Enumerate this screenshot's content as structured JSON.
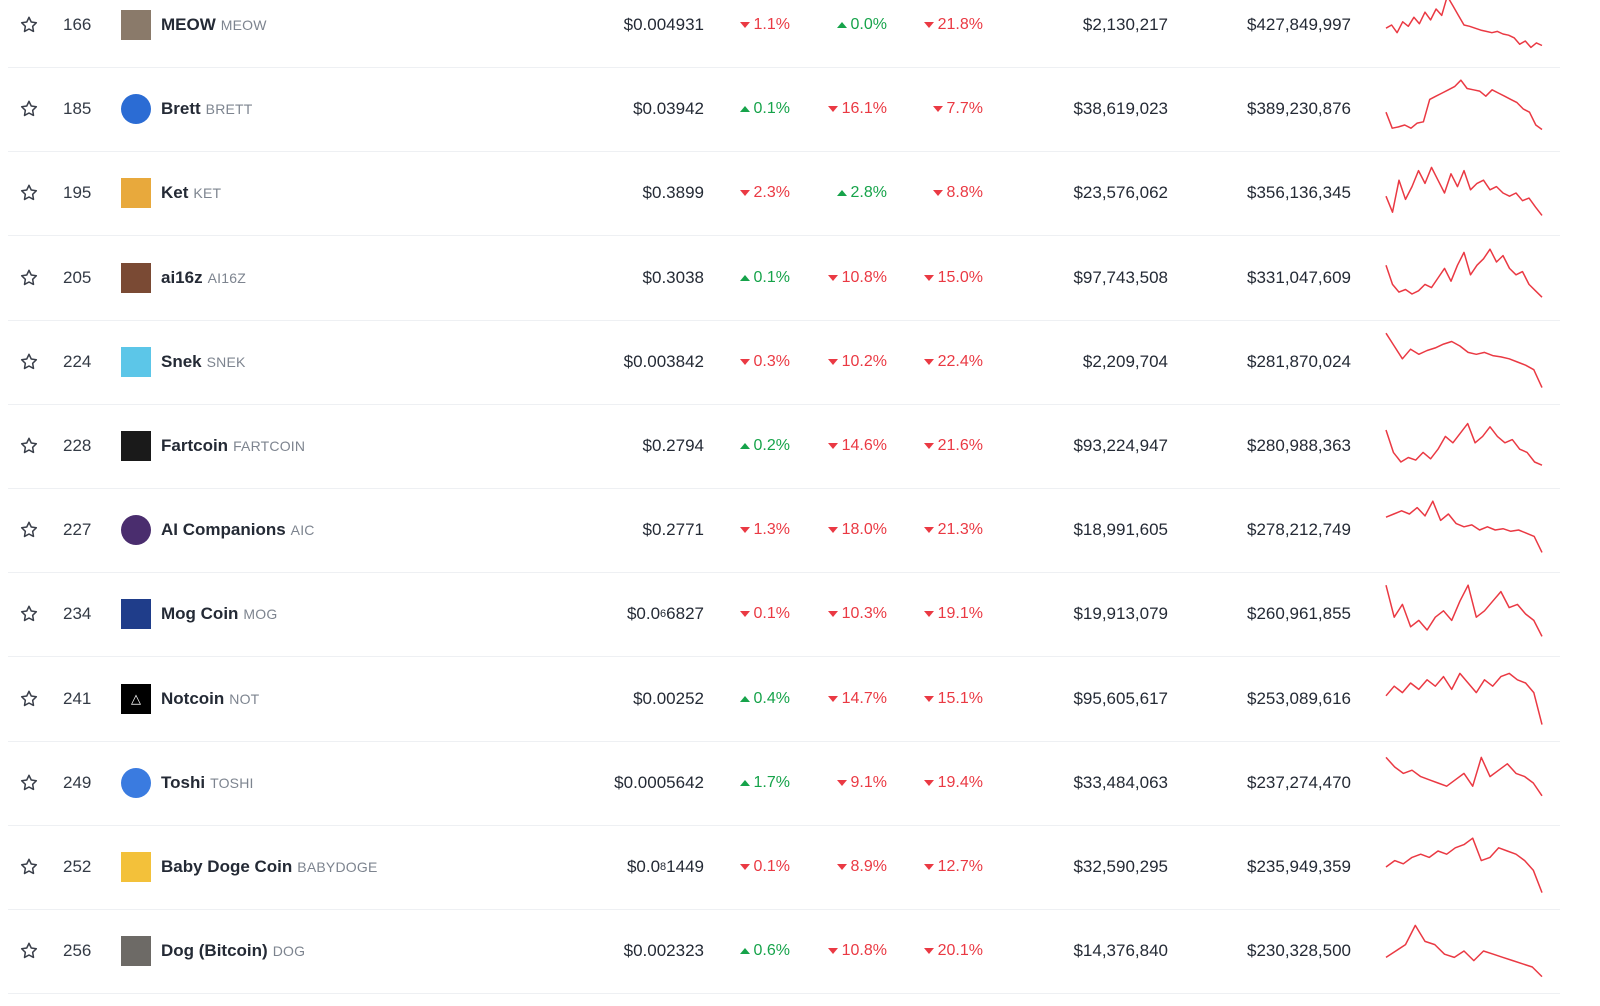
{
  "accent": {
    "up": "#16a34a",
    "down": "#ea3943",
    "spark": "#ea3943"
  },
  "rows": [
    {
      "rank": "166",
      "name": "MEOW",
      "symbol": "MEOW",
      "logo": {
        "icon": "meow-cat-icon",
        "bg": "#8a7a6a",
        "glyph": "",
        "round": false
      },
      "price": "$0.004931",
      "price_sub": "",
      "price_tail": "",
      "pct_1h": {
        "dir": "down",
        "value": "1.1%"
      },
      "pct_24h": {
        "dir": "up",
        "value": "0.0%"
      },
      "pct_7d": {
        "dir": "down",
        "value": "21.8%"
      },
      "volume": "$2,130,217",
      "market_cap": "$427,849,997",
      "spark": [
        0.55,
        0.5,
        0.62,
        0.45,
        0.52,
        0.38,
        0.48,
        0.3,
        0.42,
        0.25,
        0.35,
        0.05,
        0.2,
        0.35,
        0.5,
        0.52,
        0.55,
        0.58,
        0.6,
        0.62,
        0.6,
        0.64,
        0.66,
        0.7,
        0.8,
        0.75,
        0.85,
        0.78,
        0.82
      ]
    },
    {
      "rank": "185",
      "name": "Brett",
      "symbol": "BRETT",
      "logo": {
        "icon": "brett-blue-face-icon",
        "bg": "#2b6cd4",
        "glyph": "",
        "round": true
      },
      "price": "$0.03942",
      "price_sub": "",
      "price_tail": "",
      "pct_1h": {
        "dir": "up",
        "value": "0.1%"
      },
      "pct_24h": {
        "dir": "down",
        "value": "16.1%"
      },
      "pct_7d": {
        "dir": "down",
        "value": "7.7%"
      },
      "volume": "$38,619,023",
      "market_cap": "$389,230,876",
      "spark": [
        0.55,
        0.8,
        0.78,
        0.75,
        0.8,
        0.72,
        0.7,
        0.35,
        0.3,
        0.25,
        0.2,
        0.15,
        0.05,
        0.18,
        0.2,
        0.22,
        0.3,
        0.2,
        0.25,
        0.3,
        0.35,
        0.4,
        0.5,
        0.55,
        0.75,
        0.82
      ]
    },
    {
      "rank": "195",
      "name": "Ket",
      "symbol": "KET",
      "logo": {
        "icon": "ket-cat-icon",
        "bg": "#e8a93c",
        "glyph": "",
        "round": false
      },
      "price": "$0.3899",
      "price_sub": "",
      "price_tail": "",
      "pct_1h": {
        "dir": "down",
        "value": "2.3%"
      },
      "pct_24h": {
        "dir": "up",
        "value": "2.8%"
      },
      "pct_7d": {
        "dir": "down",
        "value": "8.8%"
      },
      "volume": "$23,576,062",
      "market_cap": "$356,136,345",
      "spark": [
        0.55,
        0.8,
        0.3,
        0.6,
        0.4,
        0.15,
        0.35,
        0.1,
        0.3,
        0.5,
        0.2,
        0.4,
        0.15,
        0.45,
        0.35,
        0.3,
        0.45,
        0.4,
        0.5,
        0.55,
        0.5,
        0.62,
        0.58,
        0.72,
        0.85
      ]
    },
    {
      "rank": "205",
      "name": "ai16z",
      "symbol": "AI16Z",
      "logo": {
        "icon": "ai16z-portrait-icon",
        "bg": "#7a4a34",
        "glyph": "",
        "round": false
      },
      "price": "$0.3038",
      "price_sub": "",
      "price_tail": "",
      "pct_1h": {
        "dir": "up",
        "value": "0.1%"
      },
      "pct_24h": {
        "dir": "down",
        "value": "10.8%"
      },
      "pct_7d": {
        "dir": "down",
        "value": "15.0%"
      },
      "volume": "$97,743,508",
      "market_cap": "$331,047,609",
      "spark": [
        0.3,
        0.6,
        0.72,
        0.68,
        0.75,
        0.7,
        0.6,
        0.65,
        0.5,
        0.35,
        0.55,
        0.3,
        0.1,
        0.45,
        0.3,
        0.2,
        0.05,
        0.25,
        0.15,
        0.35,
        0.45,
        0.4,
        0.6,
        0.7,
        0.8
      ]
    },
    {
      "rank": "224",
      "name": "Snek",
      "symbol": "SNEK",
      "logo": {
        "icon": "snek-snake-icon",
        "bg": "#5cc6e8",
        "glyph": "",
        "round": false
      },
      "price": "$0.003842",
      "price_sub": "",
      "price_tail": "",
      "pct_1h": {
        "dir": "down",
        "value": "0.3%"
      },
      "pct_24h": {
        "dir": "down",
        "value": "10.2%"
      },
      "pct_7d": {
        "dir": "down",
        "value": "22.4%"
      },
      "volume": "$2,209,704",
      "market_cap": "$281,870,024",
      "spark": [
        0.05,
        0.25,
        0.45,
        0.3,
        0.38,
        0.32,
        0.28,
        0.22,
        0.18,
        0.25,
        0.35,
        0.38,
        0.35,
        0.4,
        0.42,
        0.45,
        0.5,
        0.55,
        0.62,
        0.9
      ]
    },
    {
      "rank": "228",
      "name": "Fartcoin",
      "symbol": "FARTCOIN",
      "logo": {
        "icon": "fartcoin-dark-icon",
        "bg": "#1a1a1a",
        "glyph": "",
        "round": false
      },
      "price": "$0.2794",
      "price_sub": "",
      "price_tail": "",
      "pct_1h": {
        "dir": "up",
        "value": "0.2%"
      },
      "pct_24h": {
        "dir": "down",
        "value": "14.6%"
      },
      "pct_7d": {
        "dir": "down",
        "value": "21.6%"
      },
      "volume": "$93,224,947",
      "market_cap": "$280,988,363",
      "spark": [
        0.25,
        0.6,
        0.75,
        0.68,
        0.72,
        0.6,
        0.7,
        0.55,
        0.35,
        0.45,
        0.3,
        0.15,
        0.45,
        0.35,
        0.2,
        0.35,
        0.45,
        0.4,
        0.55,
        0.6,
        0.75,
        0.8
      ]
    },
    {
      "rank": "227",
      "name": "AI Companions",
      "symbol": "AIC",
      "logo": {
        "icon": "ai-companions-avatar-icon",
        "bg": "#4a2d6e",
        "glyph": "",
        "round": true
      },
      "price": "$0.2771",
      "price_sub": "",
      "price_tail": "",
      "pct_1h": {
        "dir": "down",
        "value": "1.3%"
      },
      "pct_24h": {
        "dir": "down",
        "value": "18.0%"
      },
      "pct_7d": {
        "dir": "down",
        "value": "21.3%"
      },
      "volume": "$18,991,605",
      "market_cap": "$278,212,749",
      "spark": [
        0.3,
        0.25,
        0.2,
        0.25,
        0.15,
        0.28,
        0.05,
        0.35,
        0.25,
        0.4,
        0.45,
        0.42,
        0.5,
        0.45,
        0.5,
        0.48,
        0.52,
        0.5,
        0.55,
        0.6,
        0.85
      ]
    },
    {
      "rank": "234",
      "name": "Mog Coin",
      "symbol": "MOG",
      "logo": {
        "icon": "mog-cat-icon",
        "bg": "#1f3d8a",
        "glyph": "",
        "round": false
      },
      "price": "$0.0",
      "price_sub": "6",
      "price_tail": "6827",
      "pct_1h": {
        "dir": "down",
        "value": "0.1%"
      },
      "pct_24h": {
        "dir": "down",
        "value": "10.3%"
      },
      "pct_7d": {
        "dir": "down",
        "value": "19.1%"
      },
      "volume": "$19,913,079",
      "market_cap": "$260,961,855",
      "spark": [
        0.05,
        0.55,
        0.35,
        0.7,
        0.6,
        0.75,
        0.55,
        0.45,
        0.6,
        0.3,
        0.05,
        0.55,
        0.45,
        0.3,
        0.15,
        0.4,
        0.35,
        0.5,
        0.6,
        0.85
      ]
    },
    {
      "rank": "241",
      "name": "Notcoin",
      "symbol": "NOT",
      "logo": {
        "icon": "notcoin-triangle-icon",
        "bg": "#000000",
        "glyph": "△",
        "round": false
      },
      "price": "$0.00252",
      "price_sub": "",
      "price_tail": "",
      "pct_1h": {
        "dir": "up",
        "value": "0.4%"
      },
      "pct_24h": {
        "dir": "down",
        "value": "14.7%"
      },
      "pct_7d": {
        "dir": "down",
        "value": "15.1%"
      },
      "volume": "$95,605,617",
      "market_cap": "$253,089,616",
      "spark": [
        0.45,
        0.3,
        0.4,
        0.25,
        0.35,
        0.2,
        0.3,
        0.15,
        0.35,
        0.1,
        0.25,
        0.4,
        0.2,
        0.3,
        0.15,
        0.1,
        0.2,
        0.25,
        0.4,
        0.9
      ]
    },
    {
      "rank": "249",
      "name": "Toshi",
      "symbol": "TOSHI",
      "logo": {
        "icon": "toshi-cat-icon",
        "bg": "#3a7be0",
        "glyph": "",
        "round": true
      },
      "price": "$0.0005642",
      "price_sub": "",
      "price_tail": "",
      "pct_1h": {
        "dir": "up",
        "value": "1.7%"
      },
      "pct_24h": {
        "dir": "down",
        "value": "9.1%"
      },
      "pct_7d": {
        "dir": "down",
        "value": "19.4%"
      },
      "volume": "$33,484,063",
      "market_cap": "$237,274,470",
      "spark": [
        0.1,
        0.25,
        0.35,
        0.3,
        0.4,
        0.45,
        0.5,
        0.55,
        0.45,
        0.35,
        0.55,
        0.1,
        0.4,
        0.3,
        0.2,
        0.35,
        0.4,
        0.5,
        0.7
      ]
    },
    {
      "rank": "252",
      "name": "Baby Doge Coin",
      "symbol": "BABYDOGE",
      "logo": {
        "icon": "baby-doge-icon",
        "bg": "#f3c13a",
        "glyph": "",
        "round": false
      },
      "price": "$0.0",
      "price_sub": "8",
      "price_tail": "1449",
      "pct_1h": {
        "dir": "down",
        "value": "0.1%"
      },
      "pct_24h": {
        "dir": "down",
        "value": "8.9%"
      },
      "pct_7d": {
        "dir": "down",
        "value": "12.7%"
      },
      "volume": "$32,590,295",
      "market_cap": "$235,949,359",
      "spark": [
        0.5,
        0.4,
        0.45,
        0.35,
        0.3,
        0.35,
        0.25,
        0.3,
        0.2,
        0.15,
        0.05,
        0.4,
        0.35,
        0.2,
        0.25,
        0.3,
        0.4,
        0.55,
        0.9
      ]
    },
    {
      "rank": "256",
      "name": "Dog (Bitcoin)",
      "symbol": "DOG",
      "logo": {
        "icon": "dog-bitcoin-icon",
        "bg": "#6d6a66",
        "glyph": "",
        "round": false
      },
      "price": "$0.002323",
      "price_sub": "",
      "price_tail": "",
      "pct_1h": {
        "dir": "up",
        "value": "0.6%"
      },
      "pct_24h": {
        "dir": "down",
        "value": "10.8%"
      },
      "pct_7d": {
        "dir": "down",
        "value": "20.1%"
      },
      "volume": "$14,376,840",
      "market_cap": "$230,328,500",
      "spark": [
        0.6,
        0.5,
        0.4,
        0.1,
        0.35,
        0.4,
        0.55,
        0.6,
        0.5,
        0.65,
        0.5,
        0.55,
        0.6,
        0.65,
        0.7,
        0.75,
        0.9
      ]
    }
  ]
}
